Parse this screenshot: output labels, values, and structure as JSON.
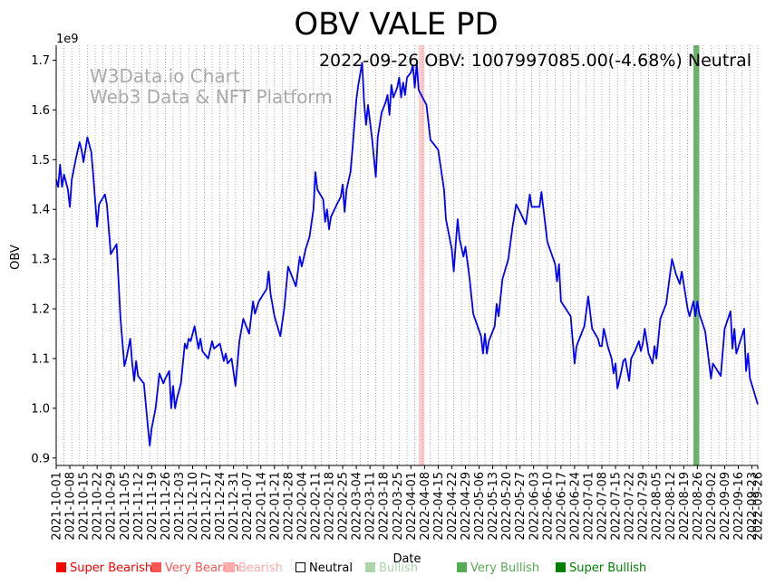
{
  "chart_data": {
    "type": "line",
    "title": "OBV VALE PD",
    "annotation": "2022-09-26 OBV: 1007997085.00(-4.68%) Neutral",
    "watermark": [
      "W3Data.io Chart",
      "Web3 Data & NFT Platform"
    ],
    "xlabel": "Date",
    "ylabel": "OBV",
    "y_offset_label": "1e9",
    "ylim": [
      0.885,
      1.73
    ],
    "yticks": [
      0.9,
      1.0,
      1.1,
      1.2,
      1.3,
      1.4,
      1.5,
      1.6,
      1.7
    ],
    "ytick_labels": [
      "0.9",
      "1.0",
      "1.1",
      "1.2",
      "1.3",
      "1.4",
      "1.5",
      "1.6",
      "1.7"
    ],
    "x_start": "2021-10-01",
    "x_end": "2022-09-26",
    "xtick_labels": [
      "2021-10-01",
      "2021-10-08",
      "2021-10-15",
      "2021-10-22",
      "2021-10-29",
      "2021-11-05",
      "2021-11-12",
      "2021-11-19",
      "2021-11-26",
      "2021-12-03",
      "2021-12-10",
      "2021-12-17",
      "2021-12-24",
      "2021-12-31",
      "2022-01-07",
      "2022-01-14",
      "2022-01-21",
      "2022-01-28",
      "2022-02-04",
      "2022-02-11",
      "2022-02-18",
      "2022-02-25",
      "2022-03-04",
      "2022-03-11",
      "2022-03-18",
      "2022-03-25",
      "2022-04-01",
      "2022-04-08",
      "2022-04-15",
      "2022-04-22",
      "2022-04-29",
      "2022-05-06",
      "2022-05-13",
      "2022-05-20",
      "2022-05-27",
      "2022-06-03",
      "2022-06-10",
      "2022-06-17",
      "2022-06-24",
      "2022-07-01",
      "2022-07-08",
      "2022-07-15",
      "2022-07-22",
      "2022-07-29",
      "2022-08-05",
      "2022-08-12",
      "2022-08-19",
      "2022-08-26",
      "2022-09-02",
      "2022-09-09",
      "2022-09-16",
      "2022-09-23",
      "2022-09-26"
    ],
    "grid": "vertical dotted",
    "series": [
      {
        "name": "OBV",
        "color": "#0000ff",
        "points": [
          [
            "2021-10-01",
            1.46
          ],
          [
            "2021-10-02",
            1.445
          ],
          [
            "2021-10-03",
            1.49
          ],
          [
            "2021-10-04",
            1.445
          ],
          [
            "2021-10-05",
            1.47
          ],
          [
            "2021-10-07",
            1.44
          ],
          [
            "2021-10-08",
            1.405
          ],
          [
            "2021-10-09",
            1.46
          ],
          [
            "2021-10-11",
            1.5
          ],
          [
            "2021-10-13",
            1.535
          ],
          [
            "2021-10-14",
            1.52
          ],
          [
            "2021-10-15",
            1.495
          ],
          [
            "2021-10-17",
            1.545
          ],
          [
            "2021-10-18",
            1.53
          ],
          [
            "2021-10-19",
            1.515
          ],
          [
            "2021-10-20",
            1.47
          ],
          [
            "2021-10-22",
            1.365
          ],
          [
            "2021-10-23",
            1.41
          ],
          [
            "2021-10-26",
            1.43
          ],
          [
            "2021-10-27",
            1.41
          ],
          [
            "2021-10-29",
            1.31
          ],
          [
            "2021-11-01",
            1.33
          ],
          [
            "2021-11-03",
            1.18
          ],
          [
            "2021-11-05",
            1.085
          ],
          [
            "2021-11-06",
            1.1
          ],
          [
            "2021-11-08",
            1.14
          ],
          [
            "2021-11-09",
            1.09
          ],
          [
            "2021-11-10",
            1.055
          ],
          [
            "2021-11-11",
            1.095
          ],
          [
            "2021-11-12",
            1.065
          ],
          [
            "2021-11-15",
            1.05
          ],
          [
            "2021-11-17",
            0.965
          ],
          [
            "2021-11-18",
            0.925
          ],
          [
            "2021-11-19",
            0.96
          ],
          [
            "2021-11-21",
            1.0
          ],
          [
            "2021-11-23",
            1.07
          ],
          [
            "2021-11-25",
            1.05
          ],
          [
            "2021-11-26",
            1.06
          ],
          [
            "2021-11-28",
            1.075
          ],
          [
            "2021-11-29",
            1.0
          ],
          [
            "2021-11-30",
            1.045
          ],
          [
            "2021-12-01",
            1.0
          ],
          [
            "2021-12-02",
            1.02
          ],
          [
            "2021-12-04",
            1.05
          ],
          [
            "2021-12-06",
            1.13
          ],
          [
            "2021-12-07",
            1.12
          ],
          [
            "2021-12-08",
            1.14
          ],
          [
            "2021-12-09",
            1.135
          ],
          [
            "2021-12-11",
            1.165
          ],
          [
            "2021-12-13",
            1.12
          ],
          [
            "2021-12-14",
            1.14
          ],
          [
            "2021-12-15",
            1.115
          ],
          [
            "2021-12-18",
            1.1
          ],
          [
            "2021-12-20",
            1.135
          ],
          [
            "2021-12-21",
            1.12
          ],
          [
            "2021-12-24",
            1.13
          ],
          [
            "2021-12-26",
            1.095
          ],
          [
            "2021-12-27",
            1.11
          ],
          [
            "2021-12-28",
            1.09
          ],
          [
            "2021-12-30",
            1.1
          ],
          [
            "2022-01-01",
            1.045
          ],
          [
            "2022-01-03",
            1.135
          ],
          [
            "2022-01-05",
            1.18
          ],
          [
            "2022-01-08",
            1.15
          ],
          [
            "2022-01-10",
            1.215
          ],
          [
            "2022-01-11",
            1.19
          ],
          [
            "2022-01-13",
            1.215
          ],
          [
            "2022-01-17",
            1.24
          ],
          [
            "2022-01-18",
            1.275
          ],
          [
            "2022-01-19",
            1.23
          ],
          [
            "2022-01-21",
            1.185
          ],
          [
            "2022-01-24",
            1.145
          ],
          [
            "2022-01-26",
            1.2
          ],
          [
            "2022-01-28",
            1.285
          ],
          [
            "2022-01-30",
            1.265
          ],
          [
            "2022-02-01",
            1.245
          ],
          [
            "2022-02-03",
            1.305
          ],
          [
            "2022-02-04",
            1.285
          ],
          [
            "2022-02-06",
            1.32
          ],
          [
            "2022-02-08",
            1.345
          ],
          [
            "2022-02-10",
            1.4
          ],
          [
            "2022-02-11",
            1.475
          ],
          [
            "2022-02-12",
            1.44
          ],
          [
            "2022-02-15",
            1.42
          ],
          [
            "2022-02-16",
            1.375
          ],
          [
            "2022-02-17",
            1.4
          ],
          [
            "2022-02-18",
            1.36
          ],
          [
            "2022-02-19",
            1.385
          ],
          [
            "2022-02-22",
            1.41
          ],
          [
            "2022-02-24",
            1.425
          ],
          [
            "2022-02-25",
            1.45
          ],
          [
            "2022-02-26",
            1.395
          ],
          [
            "2022-02-27",
            1.44
          ],
          [
            "2022-03-01",
            1.475
          ],
          [
            "2022-03-02",
            1.52
          ],
          [
            "2022-03-04",
            1.62
          ],
          [
            "2022-03-05",
            1.65
          ],
          [
            "2022-03-07",
            1.695
          ],
          [
            "2022-03-08",
            1.615
          ],
          [
            "2022-03-09",
            1.57
          ],
          [
            "2022-03-10",
            1.61
          ],
          [
            "2022-03-12",
            1.545
          ],
          [
            "2022-03-14",
            1.465
          ],
          [
            "2022-03-15",
            1.545
          ],
          [
            "2022-03-17",
            1.595
          ],
          [
            "2022-03-19",
            1.615
          ],
          [
            "2022-03-20",
            1.63
          ],
          [
            "2022-03-21",
            1.59
          ],
          [
            "2022-03-22",
            1.65
          ],
          [
            "2022-03-23",
            1.625
          ],
          [
            "2022-03-25",
            1.645
          ],
          [
            "2022-03-26",
            1.665
          ],
          [
            "2022-03-27",
            1.625
          ],
          [
            "2022-03-28",
            1.655
          ],
          [
            "2022-03-29",
            1.63
          ],
          [
            "2022-03-30",
            1.665
          ],
          [
            "2022-04-01",
            1.675
          ],
          [
            "2022-04-02",
            1.69
          ],
          [
            "2022-04-03",
            1.645
          ],
          [
            "2022-04-04",
            1.695
          ],
          [
            "2022-04-05",
            1.64
          ],
          [
            "2022-04-09",
            1.61
          ],
          [
            "2022-04-11",
            1.54
          ],
          [
            "2022-04-15",
            1.52
          ],
          [
            "2022-04-18",
            1.44
          ],
          [
            "2022-04-19",
            1.38
          ],
          [
            "2022-04-22",
            1.32
          ],
          [
            "2022-04-23",
            1.275
          ],
          [
            "2022-04-24",
            1.33
          ],
          [
            "2022-04-25",
            1.38
          ],
          [
            "2022-04-26",
            1.34
          ],
          [
            "2022-04-28",
            1.305
          ],
          [
            "2022-04-29",
            1.325
          ],
          [
            "2022-05-01",
            1.265
          ],
          [
            "2022-05-03",
            1.19
          ],
          [
            "2022-05-07",
            1.145
          ],
          [
            "2022-05-08",
            1.11
          ],
          [
            "2022-05-09",
            1.15
          ],
          [
            "2022-05-10",
            1.11
          ],
          [
            "2022-05-11",
            1.135
          ],
          [
            "2022-05-14",
            1.165
          ],
          [
            "2022-05-15",
            1.21
          ],
          [
            "2022-05-16",
            1.185
          ],
          [
            "2022-05-18",
            1.26
          ],
          [
            "2022-05-21",
            1.3
          ],
          [
            "2022-05-23",
            1.36
          ],
          [
            "2022-05-25",
            1.41
          ],
          [
            "2022-05-27",
            1.395
          ],
          [
            "2022-05-30",
            1.37
          ],
          [
            "2022-06-01",
            1.43
          ],
          [
            "2022-06-02",
            1.405
          ],
          [
            "2022-06-06",
            1.405
          ],
          [
            "2022-06-07",
            1.435
          ],
          [
            "2022-06-10",
            1.335
          ],
          [
            "2022-06-14",
            1.29
          ],
          [
            "2022-06-15",
            1.255
          ],
          [
            "2022-06-16",
            1.29
          ],
          [
            "2022-06-17",
            1.215
          ],
          [
            "2022-06-22",
            1.185
          ],
          [
            "2022-06-24",
            1.09
          ],
          [
            "2022-06-25",
            1.125
          ],
          [
            "2022-06-29",
            1.165
          ],
          [
            "2022-07-01",
            1.225
          ],
          [
            "2022-07-03",
            1.16
          ],
          [
            "2022-07-06",
            1.14
          ],
          [
            "2022-07-07",
            1.125
          ],
          [
            "2022-07-08",
            1.125
          ],
          [
            "2022-07-09",
            1.16
          ],
          [
            "2022-07-11",
            1.125
          ],
          [
            "2022-07-13",
            1.1
          ],
          [
            "2022-07-14",
            1.07
          ],
          [
            "2022-07-15",
            1.09
          ],
          [
            "2022-07-16",
            1.04
          ],
          [
            "2022-07-18",
            1.075
          ],
          [
            "2022-07-19",
            1.095
          ],
          [
            "2022-07-20",
            1.1
          ],
          [
            "2022-07-22",
            1.055
          ],
          [
            "2022-07-23",
            1.1
          ],
          [
            "2022-07-25",
            1.115
          ],
          [
            "2022-07-27",
            1.135
          ],
          [
            "2022-07-28",
            1.115
          ],
          [
            "2022-07-29",
            1.13
          ],
          [
            "2022-07-30",
            1.16
          ],
          [
            "2022-08-01",
            1.11
          ],
          [
            "2022-08-03",
            1.09
          ],
          [
            "2022-08-04",
            1.125
          ],
          [
            "2022-08-05",
            1.1
          ],
          [
            "2022-08-07",
            1.18
          ],
          [
            "2022-08-10",
            1.21
          ],
          [
            "2022-08-13",
            1.3
          ],
          [
            "2022-08-15",
            1.27
          ],
          [
            "2022-08-17",
            1.25
          ],
          [
            "2022-08-18",
            1.275
          ],
          [
            "2022-08-21",
            1.2
          ],
          [
            "2022-08-22",
            1.185
          ],
          [
            "2022-08-24",
            1.215
          ],
          [
            "2022-08-25",
            1.185
          ],
          [
            "2022-08-26",
            1.215
          ],
          [
            "2022-08-27",
            1.19
          ],
          [
            "2022-08-30",
            1.155
          ],
          [
            "2022-09-02",
            1.06
          ],
          [
            "2022-09-03",
            1.09
          ],
          [
            "2022-09-07",
            1.065
          ],
          [
            "2022-09-09",
            1.16
          ],
          [
            "2022-09-12",
            1.195
          ],
          [
            "2022-09-13",
            1.12
          ],
          [
            "2022-09-14",
            1.16
          ],
          [
            "2022-09-15",
            1.11
          ],
          [
            "2022-09-19",
            1.16
          ],
          [
            "2022-09-20",
            1.075
          ],
          [
            "2022-09-21",
            1.11
          ],
          [
            "2022-09-22",
            1.06
          ],
          [
            "2022-09-26",
            1.008
          ]
        ]
      }
    ],
    "bands": [
      {
        "start": "2022-04-05",
        "end": "2022-04-08",
        "signal": "Bearish",
        "color": "#ffcccc"
      },
      {
        "start": "2022-08-24",
        "end": "2022-08-27",
        "signal": "Very Bullish",
        "color": "#6ab46a"
      }
    ],
    "legend": [
      {
        "label": "Super Bearish",
        "color": "#ff0000"
      },
      {
        "label": "Very Bearish",
        "color": "#ff5555"
      },
      {
        "label": "Bearish",
        "color": "#ffaaaa"
      },
      {
        "label": "Neutral",
        "color": "#000000"
      },
      {
        "label": "Bullish",
        "color": "#aad4aa"
      },
      {
        "label": "Very Bullish",
        "color": "#55aa55"
      },
      {
        "label": "Super Bullish",
        "color": "#007f00"
      }
    ]
  }
}
